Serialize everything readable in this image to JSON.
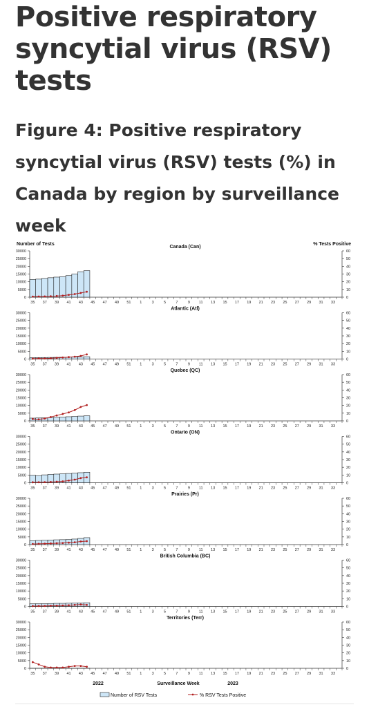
{
  "page": {
    "title": "Positive respiratory syncytial virus (RSV) tests",
    "figure_title": "Figure 4: Positive respiratory syncytial virus (RSV) tests (%) in Canada by region by surveillance week"
  },
  "chart_data": {
    "type": "bar",
    "left_axis_label": "Number of Tests",
    "right_axis_label": "% Tests Positive",
    "xlabel": "Surveillance Week",
    "year_labels": [
      "2022",
      "2023"
    ],
    "week_ticks": [
      "35",
      "37",
      "39",
      "41",
      "43",
      "45",
      "47",
      "49",
      "51",
      "1",
      "3",
      "5",
      "7",
      "9",
      "11",
      "13",
      "15",
      "17",
      "19",
      "21",
      "23",
      "25",
      "27",
      "29",
      "31",
      "33"
    ],
    "ylim": [
      0,
      30000
    ],
    "yticks": [
      "30000",
      "25000",
      "20000",
      "15000",
      "10000",
      "5000",
      "0"
    ],
    "y2lim": [
      0,
      60
    ],
    "y2ticks": [
      "60",
      "50",
      "40",
      "30",
      "20",
      "10",
      "0"
    ],
    "colors": {
      "bar_fill": "#cde6f7",
      "bar_edge": "#222222",
      "line": "#b22222"
    },
    "legend": {
      "bars": "Number of RSV Tests",
      "line": "% RSV Tests Positive",
      "position": "bottom"
    },
    "weeks": [
      "35",
      "36",
      "37",
      "38",
      "39",
      "40",
      "41",
      "42",
      "43",
      "44"
    ],
    "panels": [
      {
        "name": "Canada (Can)",
        "tests": [
          11500,
          11700,
          12200,
          12600,
          13000,
          13300,
          14000,
          15000,
          16500,
          17200
        ],
        "pct_positive": [
          0.8,
          0.9,
          1.0,
          1.2,
          1.5,
          2.0,
          3.0,
          4.0,
          5.5,
          7.0
        ]
      },
      {
        "name": "Atlantic (Atl)",
        "tests": [
          900,
          950,
          1000,
          1050,
          1100,
          1150,
          1200,
          1300,
          1400,
          1500
        ],
        "pct_positive": [
          0.5,
          0.8,
          0.7,
          1.0,
          1.5,
          2.0,
          2.5,
          3.0,
          4.0,
          6.0
        ]
      },
      {
        "name": "Quebec (QC)",
        "tests": [
          1800,
          1900,
          2000,
          2100,
          2300,
          2500,
          2700,
          2900,
          3100,
          3300
        ],
        "pct_positive": [
          2.5,
          2.0,
          3.0,
          5.0,
          7.0,
          9.0,
          11.0,
          14.0,
          18.0,
          20.5
        ]
      },
      {
        "name": "Ontario (ON)",
        "tests": [
          4900,
          4600,
          5100,
          5400,
          5600,
          5800,
          6000,
          6200,
          6500,
          6800
        ],
        "pct_positive": [
          0.6,
          0.7,
          0.8,
          1.0,
          1.3,
          1.8,
          2.8,
          4.0,
          6.0,
          7.0
        ]
      },
      {
        "name": "Prairies (Pr)",
        "tests": [
          2500,
          2700,
          2800,
          3000,
          3100,
          3200,
          3300,
          3600,
          4000,
          4500
        ],
        "pct_positive": [
          0.8,
          1.0,
          1.2,
          1.5,
          1.8,
          2.0,
          2.5,
          3.0,
          4.0,
          4.5
        ]
      },
      {
        "name": "British Columbia (BC)",
        "tests": [
          1700,
          1800,
          1800,
          1900,
          2000,
          2000,
          2100,
          2200,
          2300,
          2400
        ],
        "pct_positive": [
          0.5,
          0.6,
          0.7,
          0.9,
          1.0,
          1.2,
          1.5,
          2.0,
          2.5,
          2.0
        ]
      },
      {
        "name": "Territories (Terr)",
        "tests": [
          40,
          30,
          35,
          30,
          40,
          45,
          50,
          60,
          55,
          50
        ],
        "pct_positive": [
          8.0,
          5.0,
          2.0,
          1.0,
          1.0,
          1.0,
          2.0,
          3.0,
          3.0,
          2.0
        ]
      }
    ]
  }
}
